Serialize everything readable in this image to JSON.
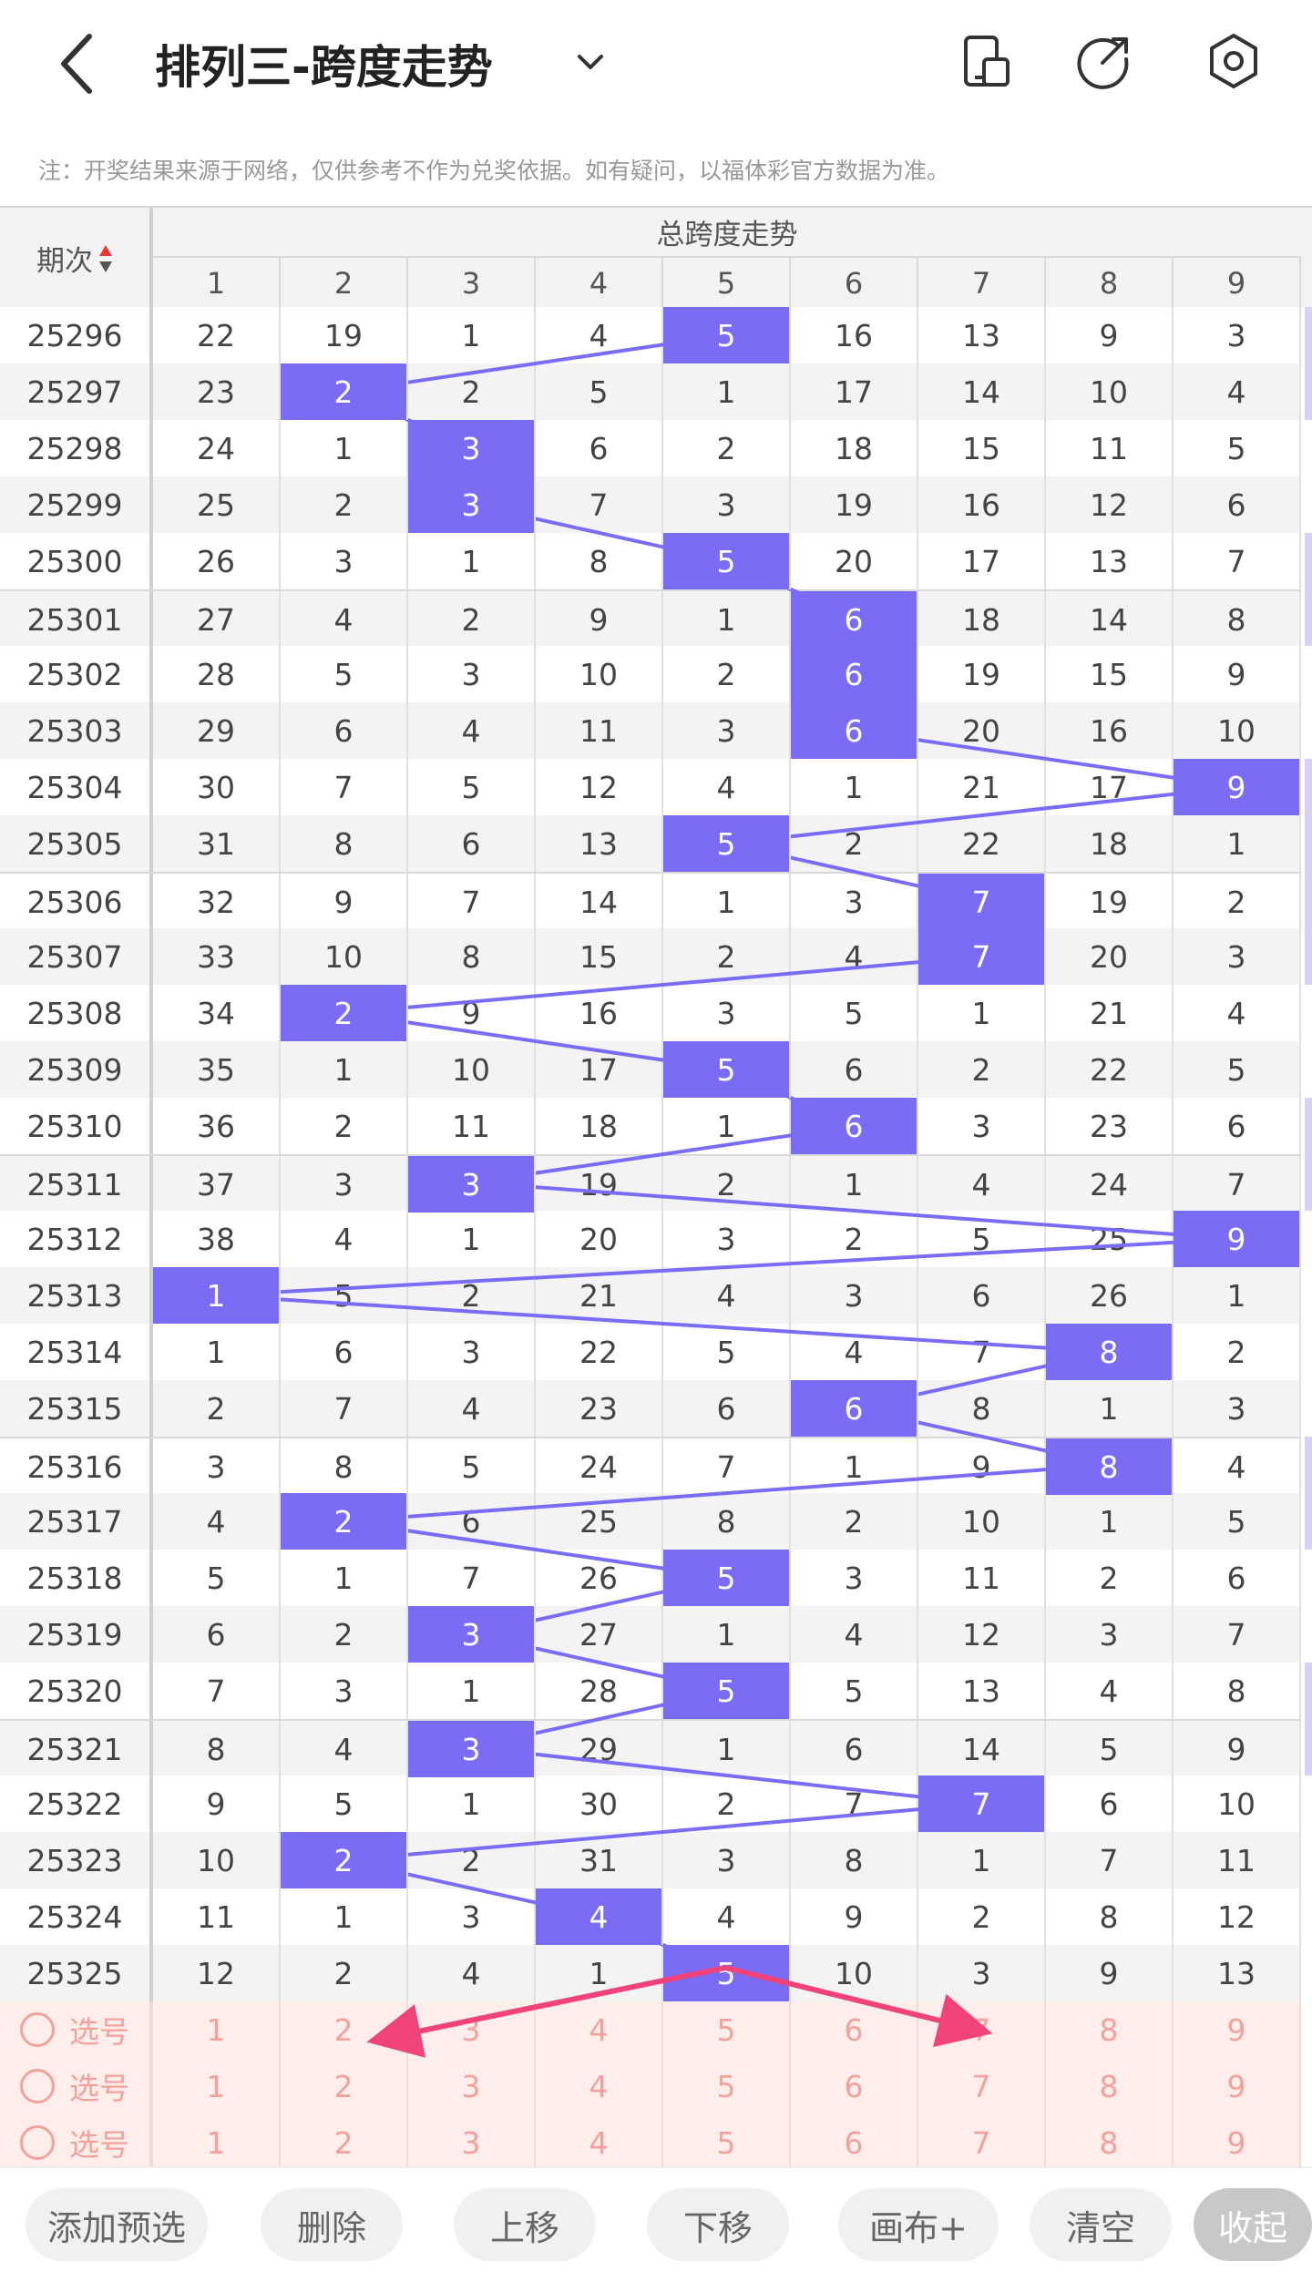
{
  "header": {
    "title": "排列三-跨度走势",
    "notice": "注：开奖结果来源于网络，仅供参考不作为兑奖依据。如有疑问，以福体彩官方数据为准。",
    "icons": [
      "back-icon",
      "chevron-down-icon",
      "phone-icon",
      "share-icon",
      "settings-icon"
    ]
  },
  "table": {
    "period_header": "期次",
    "group_header": "总跨度走势",
    "columns": [
      "1",
      "2",
      "3",
      "4",
      "5",
      "6",
      "7",
      "8",
      "9"
    ],
    "rows": [
      {
        "period": "25296",
        "values": [
          "22",
          "19",
          "1",
          "4",
          "5",
          "16",
          "13",
          "9",
          "3"
        ],
        "hit": 5
      },
      {
        "period": "25297",
        "values": [
          "23",
          "2",
          "2",
          "5",
          "1",
          "17",
          "14",
          "10",
          "4"
        ],
        "hit": 2
      },
      {
        "period": "25298",
        "values": [
          "24",
          "1",
          "3",
          "6",
          "2",
          "18",
          "15",
          "11",
          "5"
        ],
        "hit": 3
      },
      {
        "period": "25299",
        "values": [
          "25",
          "2",
          "3",
          "7",
          "3",
          "19",
          "16",
          "12",
          "6"
        ],
        "hit": 3
      },
      {
        "period": "25300",
        "values": [
          "26",
          "3",
          "1",
          "8",
          "5",
          "20",
          "17",
          "13",
          "7"
        ],
        "hit": 5
      },
      {
        "period": "25301",
        "values": [
          "27",
          "4",
          "2",
          "9",
          "1",
          "6",
          "18",
          "14",
          "8"
        ],
        "hit": 6
      },
      {
        "period": "25302",
        "values": [
          "28",
          "5",
          "3",
          "10",
          "2",
          "6",
          "19",
          "15",
          "9"
        ],
        "hit": 6
      },
      {
        "period": "25303",
        "values": [
          "29",
          "6",
          "4",
          "11",
          "3",
          "6",
          "20",
          "16",
          "10"
        ],
        "hit": 6
      },
      {
        "period": "25304",
        "values": [
          "30",
          "7",
          "5",
          "12",
          "4",
          "1",
          "21",
          "17",
          "9"
        ],
        "hit": 9
      },
      {
        "period": "25305",
        "values": [
          "31",
          "8",
          "6",
          "13",
          "5",
          "2",
          "22",
          "18",
          "1"
        ],
        "hit": 5
      },
      {
        "period": "25306",
        "values": [
          "32",
          "9",
          "7",
          "14",
          "1",
          "3",
          "7",
          "19",
          "2"
        ],
        "hit": 7
      },
      {
        "period": "25307",
        "values": [
          "33",
          "10",
          "8",
          "15",
          "2",
          "4",
          "7",
          "20",
          "3"
        ],
        "hit": 7
      },
      {
        "period": "25308",
        "values": [
          "34",
          "2",
          "9",
          "16",
          "3",
          "5",
          "1",
          "21",
          "4"
        ],
        "hit": 2
      },
      {
        "period": "25309",
        "values": [
          "35",
          "1",
          "10",
          "17",
          "5",
          "6",
          "2",
          "22",
          "5"
        ],
        "hit": 5
      },
      {
        "period": "25310",
        "values": [
          "36",
          "2",
          "11",
          "18",
          "1",
          "6",
          "3",
          "23",
          "6"
        ],
        "hit": 6
      },
      {
        "period": "25311",
        "values": [
          "37",
          "3",
          "3",
          "19",
          "2",
          "1",
          "4",
          "24",
          "7"
        ],
        "hit": 3
      },
      {
        "period": "25312",
        "values": [
          "38",
          "4",
          "1",
          "20",
          "3",
          "2",
          "5",
          "25",
          "9"
        ],
        "hit": 9
      },
      {
        "period": "25313",
        "values": [
          "1",
          "5",
          "2",
          "21",
          "4",
          "3",
          "6",
          "26",
          "1"
        ],
        "hit": 1
      },
      {
        "period": "25314",
        "values": [
          "1",
          "6",
          "3",
          "22",
          "5",
          "4",
          "7",
          "8",
          "2"
        ],
        "hit": 8
      },
      {
        "period": "25315",
        "values": [
          "2",
          "7",
          "4",
          "23",
          "6",
          "6",
          "8",
          "1",
          "3"
        ],
        "hit": 6
      },
      {
        "period": "25316",
        "values": [
          "3",
          "8",
          "5",
          "24",
          "7",
          "1",
          "9",
          "8",
          "4"
        ],
        "hit": 8
      },
      {
        "period": "25317",
        "values": [
          "4",
          "2",
          "6",
          "25",
          "8",
          "2",
          "10",
          "1",
          "5"
        ],
        "hit": 2
      },
      {
        "period": "25318",
        "values": [
          "5",
          "1",
          "7",
          "26",
          "5",
          "3",
          "11",
          "2",
          "6"
        ],
        "hit": 5
      },
      {
        "period": "25319",
        "values": [
          "6",
          "2",
          "3",
          "27",
          "1",
          "4",
          "12",
          "3",
          "7"
        ],
        "hit": 3
      },
      {
        "period": "25320",
        "values": [
          "7",
          "3",
          "1",
          "28",
          "5",
          "5",
          "13",
          "4",
          "8"
        ],
        "hit": 5
      },
      {
        "period": "25321",
        "values": [
          "8",
          "4",
          "3",
          "29",
          "1",
          "6",
          "14",
          "5",
          "9"
        ],
        "hit": 3
      },
      {
        "period": "25322",
        "values": [
          "9",
          "5",
          "1",
          "30",
          "2",
          "7",
          "7",
          "6",
          "10"
        ],
        "hit": 7
      },
      {
        "period": "25323",
        "values": [
          "10",
          "2",
          "2",
          "31",
          "3",
          "8",
          "1",
          "7",
          "11"
        ],
        "hit": 2
      },
      {
        "period": "25324",
        "values": [
          "11",
          "1",
          "3",
          "4",
          "4",
          "9",
          "2",
          "8",
          "12"
        ],
        "hit": 4
      },
      {
        "period": "25325",
        "values": [
          "12",
          "2",
          "4",
          "1",
          "5",
          "10",
          "3",
          "9",
          "13"
        ],
        "hit": 5
      }
    ],
    "select_rows": [
      {
        "label": "选号",
        "values": [
          "1",
          "2",
          "3",
          "4",
          "5",
          "6",
          "7",
          "8",
          "9"
        ]
      },
      {
        "label": "选号",
        "values": [
          "1",
          "2",
          "3",
          "4",
          "5",
          "6",
          "7",
          "8",
          "9"
        ]
      },
      {
        "label": "选号",
        "values": [
          "1",
          "2",
          "3",
          "4",
          "5",
          "6",
          "7",
          "8",
          "9"
        ]
      }
    ],
    "colors": {
      "hit": "#7b6cf6",
      "line": "#7b6cf6",
      "arrow": "#f0437a",
      "select": "#fdeeeb"
    }
  },
  "toolbar": {
    "buttons": [
      "添加预选",
      "删除",
      "上移",
      "下移",
      "画布+",
      "清空",
      "收起"
    ]
  }
}
